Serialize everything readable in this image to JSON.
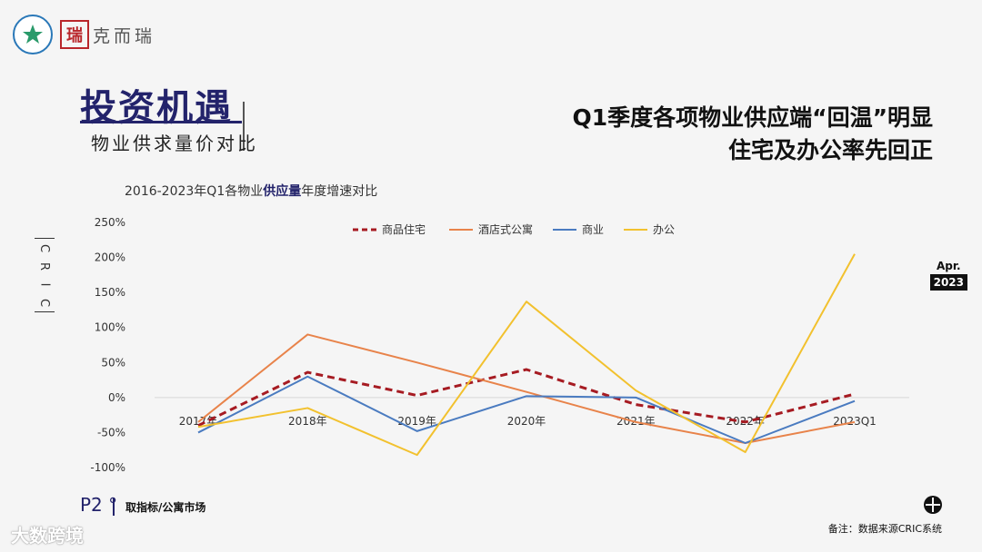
{
  "branding": {
    "brand_name": "克而瑞"
  },
  "section": {
    "title": "投资机遇",
    "subtitle": "物业供求量价对比"
  },
  "headline": {
    "line1": "Q1季度各项物业供应端“回温”明显",
    "line2": "住宅及办公率先回正"
  },
  "chart_title": {
    "prefix": "2016-2023年Q1各物业",
    "highlight": "供应量",
    "suffix": "年度增速对比"
  },
  "side_label": [
    "C",
    "R",
    "I",
    "C"
  ],
  "date_badge": {
    "month": "Apr.",
    "year": "2023"
  },
  "footer": {
    "page_number": "P2 °",
    "page_tag": "取指标/公寓市场",
    "watermark": "大数跨境",
    "note": "备注：数据来源CRIC系统"
  },
  "colors": {
    "residential": "#a61b22",
    "hotel": "#e8834a",
    "commercial": "#4a7bc0",
    "office": "#f2c12e"
  },
  "chart_data": {
    "type": "line",
    "categories": [
      "2017年",
      "2018年",
      "2019年",
      "2020年",
      "2021年",
      "2022年",
      "2023Q1"
    ],
    "y_ticks": [
      "250%",
      "200%",
      "150%",
      "100%",
      "50%",
      "0%",
      "-50%",
      "-100%"
    ],
    "ylim": [
      -100,
      250
    ],
    "grid": false,
    "legend_position": "top-center",
    "series": [
      {
        "name": "商品住宅",
        "key": "residential",
        "dashed": true,
        "values": [
          -40,
          36,
          3,
          40,
          -10,
          -35,
          5
        ]
      },
      {
        "name": "酒店式公寓",
        "key": "hotel",
        "dashed": false,
        "values": [
          -35,
          90,
          50,
          8,
          -35,
          -65,
          -35
        ]
      },
      {
        "name": "商业",
        "key": "commercial",
        "dashed": false,
        "values": [
          -50,
          30,
          -48,
          2,
          0,
          -65,
          -5
        ]
      },
      {
        "name": "办公",
        "key": "office",
        "dashed": false,
        "values": [
          -42,
          -15,
          -82,
          137,
          10,
          -78,
          205
        ]
      }
    ]
  }
}
